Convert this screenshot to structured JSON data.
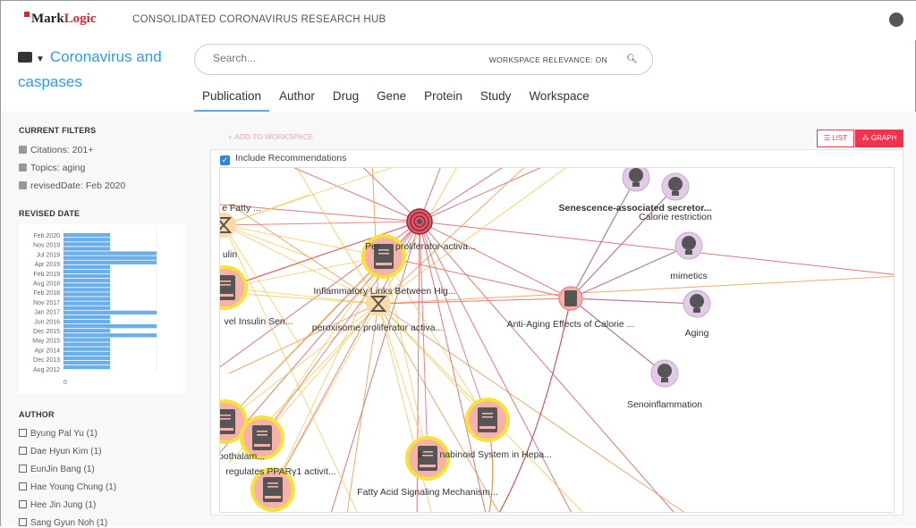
{
  "header": {
    "logo_text": "MarkLogic",
    "logo_part1": "Mark",
    "logo_part2": "Logic",
    "app_title": "CONSOLIDATED CORONAVIRUS RESEARCH HUB"
  },
  "workspace": {
    "title": "Coronavirus and caspases"
  },
  "search": {
    "placeholder": "Search...",
    "relevance": "WORKSPACE RELEVANCE: ON"
  },
  "tabs": [
    {
      "label": "Publication",
      "active": true
    },
    {
      "label": "Author"
    },
    {
      "label": "Drug"
    },
    {
      "label": "Gene"
    },
    {
      "label": "Protein"
    },
    {
      "label": "Study"
    },
    {
      "label": "Workspace"
    }
  ],
  "filters": {
    "heading": "CURRENT FILTERS",
    "items": [
      "Citations: 201+",
      "Topics: aging",
      "revisedDate: Feb 2020"
    ]
  },
  "revised_date": {
    "heading": "REVISED DATE",
    "axis_zero": "0",
    "labels": [
      "Feb 2020",
      "Nov 2019",
      "Jul 2019",
      "Apr 2019",
      "Feb 2019",
      "Aug 2018",
      "Feb 2018",
      "Nov 2017",
      "Jan 2017",
      "Jun 2016",
      "Dec 2015",
      "May 2015",
      "Apr 2014",
      "Dec 2013",
      "Aug 2012"
    ],
    "bar_values": [
      1,
      1,
      1,
      1,
      2,
      2,
      2,
      1,
      1,
      1,
      1,
      1,
      1,
      1,
      1,
      1,
      1,
      2,
      1,
      1,
      2,
      1,
      2,
      1,
      1,
      1,
      1,
      1,
      1,
      1
    ],
    "accent": "#6aaeea"
  },
  "author": {
    "heading": "AUTHOR",
    "items": [
      "Byung Pal Yu (1)",
      "Dae Hyun Kim (1)",
      "EunJin Bang (1)",
      "Hae Young Chung (1)",
      "Hee Jin Jung (1)",
      "Sang Gyun Noh (1)"
    ]
  },
  "toolbar": {
    "add_workspace": "+ ADD TO WORKSPACE",
    "list": "LIST",
    "graph": "GRAPH",
    "accent": "#f0344f"
  },
  "include_recommendations": {
    "label": "Include Recommendations",
    "checked": true
  },
  "graph": {
    "labels": {
      "n_target": "",
      "n_book_main": "Peroxisome proliferator-activa...",
      "l_book_main": "Per      proliferator-activa...",
      "l_inflam": "Inflammatory Links Between Hig...",
      "l_perox": "peroxisome proliferator activa...",
      "l_fatty": "e Fatty ...",
      "l_ulin": "ulin",
      "l_insulin": "vel Insulin Sen...",
      "l_anti": "Anti-Aging Effects of Calorie ...",
      "l_senes": "Senescence-associated secretor...",
      "l_calorie": "Calorie restriction",
      "l_mimetics": "mimetics",
      "l_aging": "Aging",
      "l_senoinf": "Senoinflammation",
      "l_hypo": "pothalam...",
      "l_ppar": "regulates PPARγ1 activit...",
      "l_endo": "E      nabinoid System in Hepa...",
      "l_fattyacid": "Fatty Acid Signaling Mechanism..."
    },
    "colors": {
      "publication": "#f6b1a9",
      "publication_ring": "#f3e33a",
      "concept": "#e1cbe6",
      "gene": "#fdd9a6",
      "target": "#e8556a"
    }
  }
}
